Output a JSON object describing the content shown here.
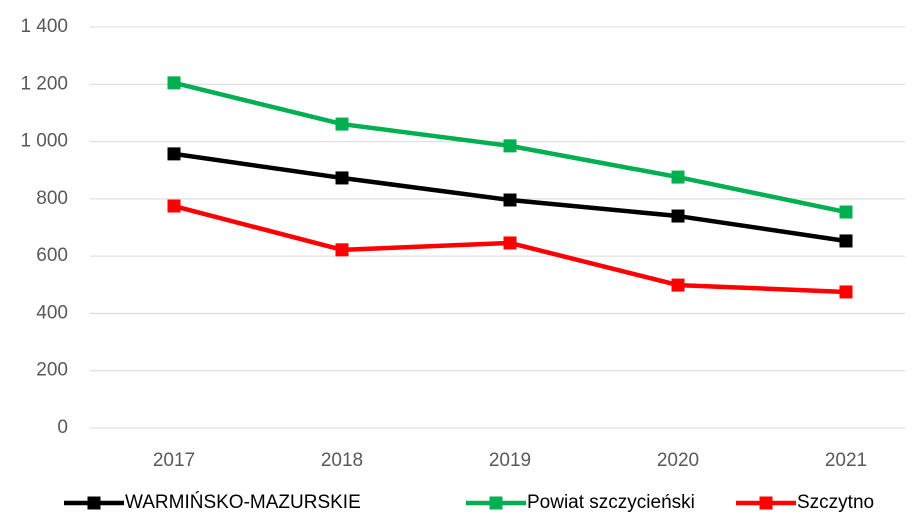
{
  "chart_data": {
    "type": "line",
    "categories": [
      "2017",
      "2018",
      "2019",
      "2020",
      "2021"
    ],
    "series": [
      {
        "name": "WARMIŃSKO-MAZURSKIE",
        "color": "#000000",
        "values": [
          957,
          873,
          796,
          740,
          653
        ]
      },
      {
        "name": "Powiat szczycieński",
        "color": "#00b050",
        "values": [
          1205,
          1061,
          985,
          876,
          754
        ]
      },
      {
        "name": "Szczytno",
        "color": "#ff0000",
        "values": [
          775,
          622,
          646,
          499,
          475
        ]
      }
    ],
    "ylim": [
      0,
      1400
    ],
    "yticks": [
      0,
      200,
      400,
      600,
      800,
      {
        "value": 1000,
        "label": "1 000"
      },
      {
        "value": 1200,
        "label": "1 200"
      },
      {
        "value": 1400,
        "label": "1 400"
      }
    ],
    "grid": true,
    "legend": "bottom"
  }
}
